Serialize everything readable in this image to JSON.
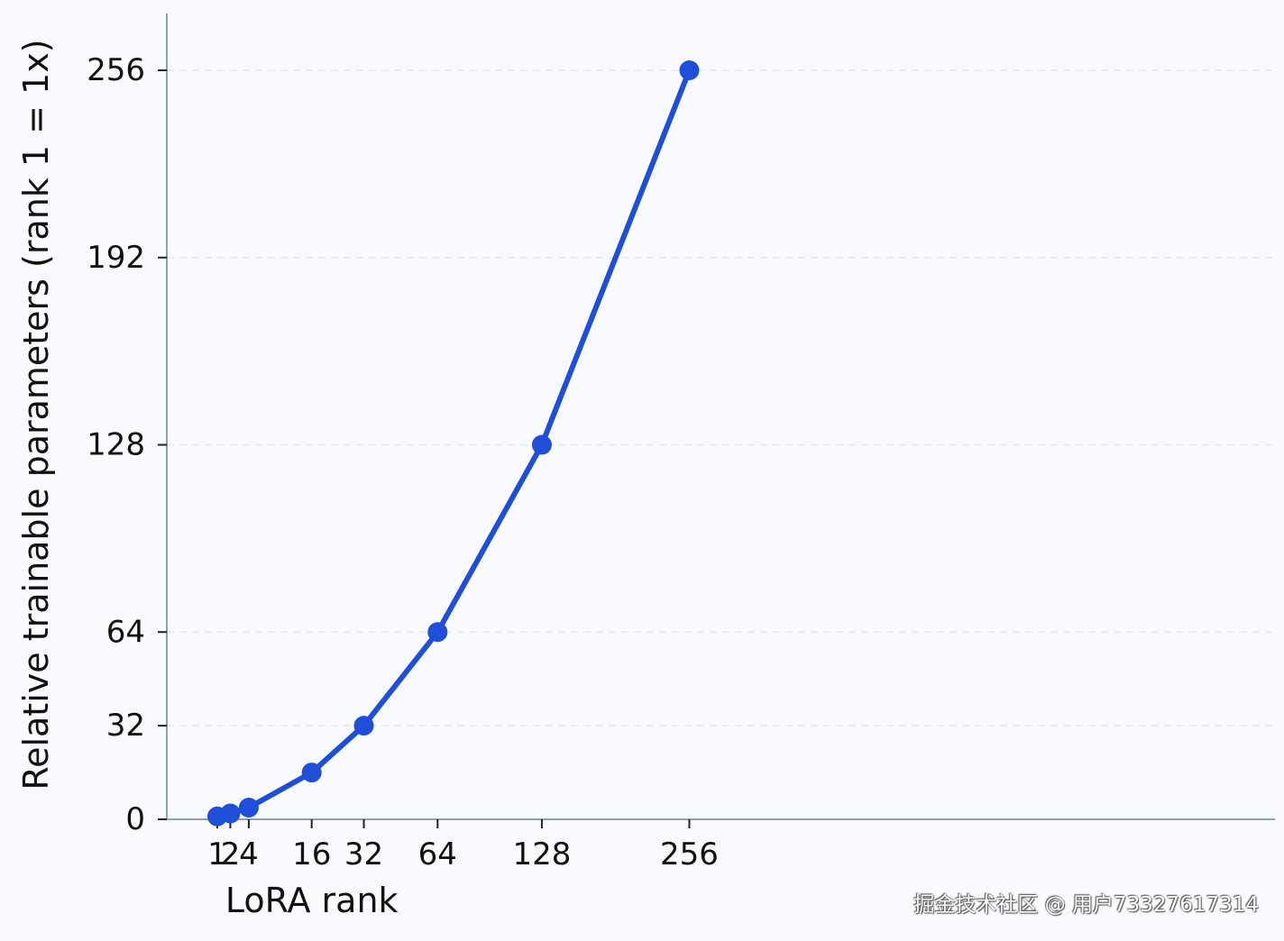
{
  "chart_data": {
    "type": "line",
    "title": "",
    "xlabel": "LoRA rank",
    "ylabel": "Relative trainable parameters (rank 1 = 1x)",
    "x": [
      1,
      2,
      4,
      16,
      32,
      64,
      128,
      256
    ],
    "x_tick_labels": [
      "1",
      "2",
      "4",
      "16",
      "32",
      "64",
      "128",
      "256"
    ],
    "y_ticks": [
      0,
      32,
      64,
      128,
      192,
      256
    ],
    "y_tick_labels": [
      "0",
      "32",
      "64",
      "128",
      "192",
      "256"
    ],
    "ylim": [
      0,
      275
    ],
    "series": [
      {
        "name": "Relative trainable parameters",
        "values": [
          1,
          2,
          4,
          16,
          32,
          64,
          128,
          256
        ],
        "color": "#1f4fd8"
      }
    ],
    "grid": "horizontal dashed",
    "axis_color": "#8ea0b4",
    "grid_color": "#e3e8ef"
  },
  "watermark": "掘金技术社区 @ 用户73327617314"
}
